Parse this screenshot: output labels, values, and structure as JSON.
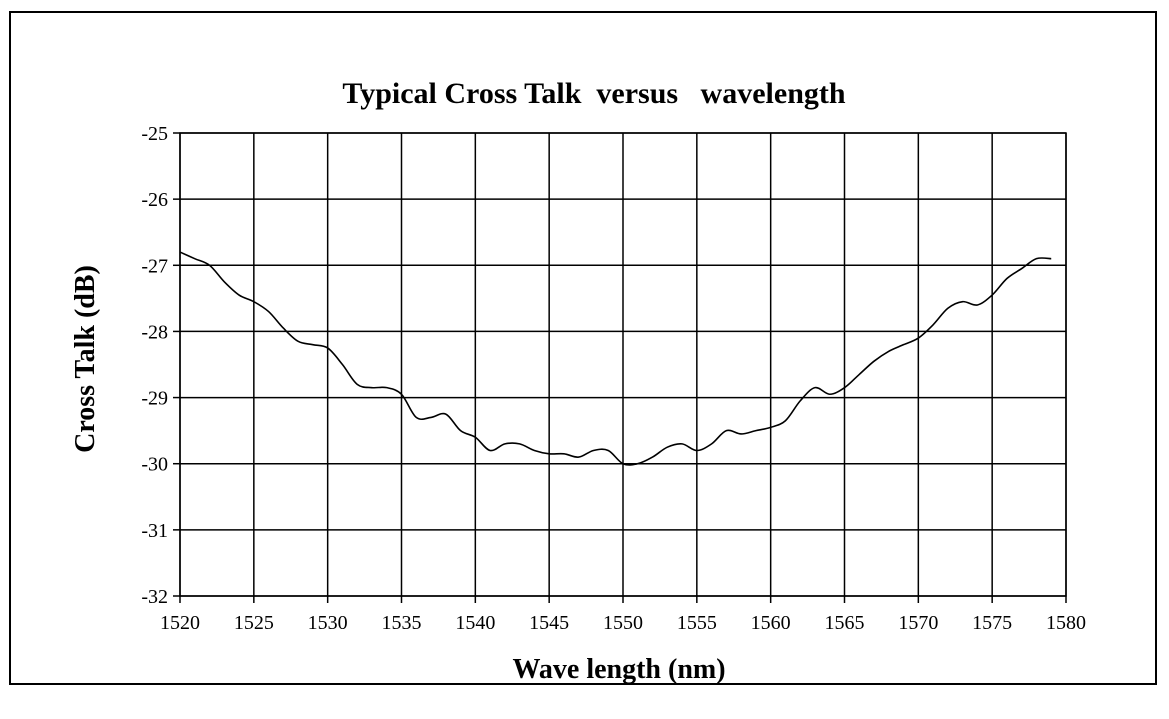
{
  "chart_data": {
    "type": "line",
    "title": "Typical Cross Talk  versus   wavelength",
    "xlabel": "Wave length (nm)",
    "ylabel": "Cross Talk (dB)",
    "xlim": [
      1520,
      1580
    ],
    "ylim": [
      -32,
      -25
    ],
    "xticks": [
      "1520",
      "1525",
      "1530",
      "1535",
      "1540",
      "1545",
      "1550",
      "1555",
      "1560",
      "1565",
      "1570",
      "1575",
      "1580"
    ],
    "yticks": [
      "-25",
      "-26",
      "-27",
      "-28",
      "-29",
      "-30",
      "-31",
      "-32"
    ],
    "grid": true,
    "legend": "none",
    "series": [
      {
        "color": "#000000",
        "x": [
          1520,
          1521,
          1522,
          1523,
          1524,
          1525,
          1526,
          1527,
          1528,
          1529,
          1530,
          1531,
          1532,
          1533,
          1534,
          1535,
          1536,
          1537,
          1538,
          1539,
          1540,
          1541,
          1542,
          1543,
          1544,
          1545,
          1546,
          1547,
          1548,
          1549,
          1550,
          1551,
          1552,
          1553,
          1554,
          1555,
          1556,
          1557,
          1558,
          1559,
          1560,
          1561,
          1562,
          1563,
          1564,
          1565,
          1566,
          1567,
          1568,
          1569,
          1570,
          1571,
          1572,
          1573,
          1574,
          1575,
          1576,
          1577,
          1578,
          1579
        ],
        "values": [
          -26.8,
          -26.9,
          -27.0,
          -27.25,
          -27.45,
          -27.55,
          -27.7,
          -27.95,
          -28.15,
          -28.2,
          -28.25,
          -28.5,
          -28.8,
          -28.85,
          -28.85,
          -28.95,
          -29.3,
          -29.3,
          -29.25,
          -29.5,
          -29.6,
          -29.8,
          -29.7,
          -29.7,
          -29.8,
          -29.85,
          -29.85,
          -29.9,
          -29.8,
          -29.8,
          -30.0,
          -30.0,
          -29.9,
          -29.75,
          -29.7,
          -29.8,
          -29.7,
          -29.5,
          -29.55,
          -29.5,
          -29.45,
          -29.35,
          -29.05,
          -28.85,
          -28.95,
          -28.85,
          -28.65,
          -28.45,
          -28.3,
          -28.2,
          -28.1,
          -27.9,
          -27.65,
          -27.55,
          -27.6,
          -27.45,
          -27.2,
          -27.05,
          -26.9,
          -26.9
        ]
      }
    ]
  }
}
